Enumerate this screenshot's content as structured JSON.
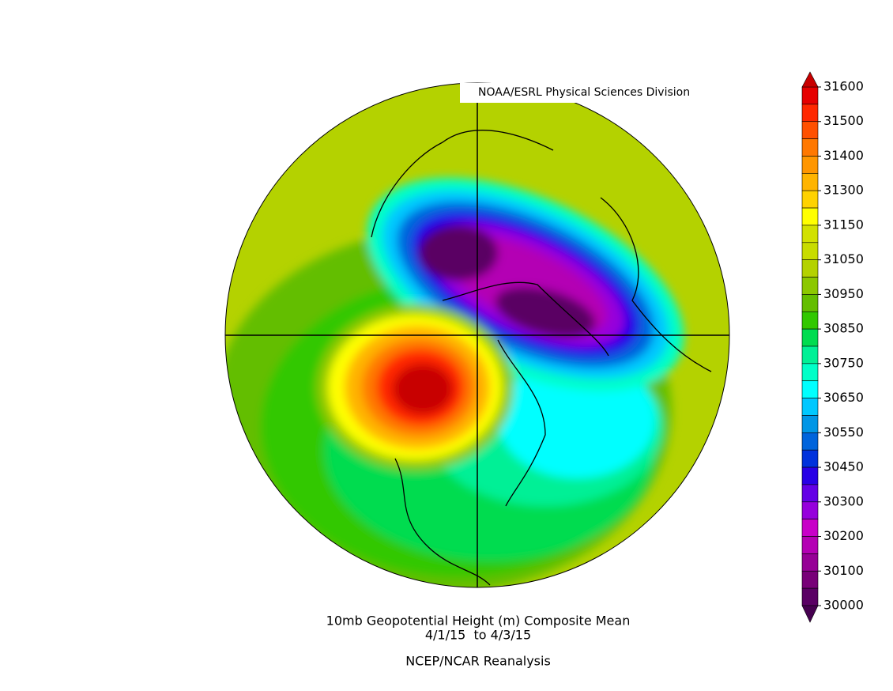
{
  "map": {
    "credit": "NOAA/ESRL Physical Sciences Division",
    "title": [
      "10mb Geopotential Height (m) Composite Mean",
      "4/1/15  to 4/3/15",
      "NCEP/NCAR Reanalysis"
    ],
    "colorbar": {
      "labels": [
        31600,
        31500,
        31400,
        31300,
        31150,
        31050,
        30950,
        30850,
        30750,
        30650,
        30550,
        30450,
        30300,
        30200,
        30100,
        30000
      ],
      "colors": [
        "#e60000",
        "#ff2800",
        "#ff5000",
        "#ff7800",
        "#ff9600",
        "#ffb400",
        "#ffd200",
        "#ffff00",
        "#d2e100",
        "#c8dc00",
        "#b4d200",
        "#8cc800",
        "#64be00",
        "#32c800",
        "#00dc50",
        "#00f096",
        "#00ffc8",
        "#00ffff",
        "#00c8ff",
        "#0096e6",
        "#0064dc",
        "#0032dc",
        "#2800e6",
        "#6400e6",
        "#9600dc",
        "#c800c8",
        "#b400b4",
        "#960096",
        "#780078",
        "#5a0064"
      ],
      "over_color": "#c80000",
      "under_color": "#460050"
    }
  }
}
